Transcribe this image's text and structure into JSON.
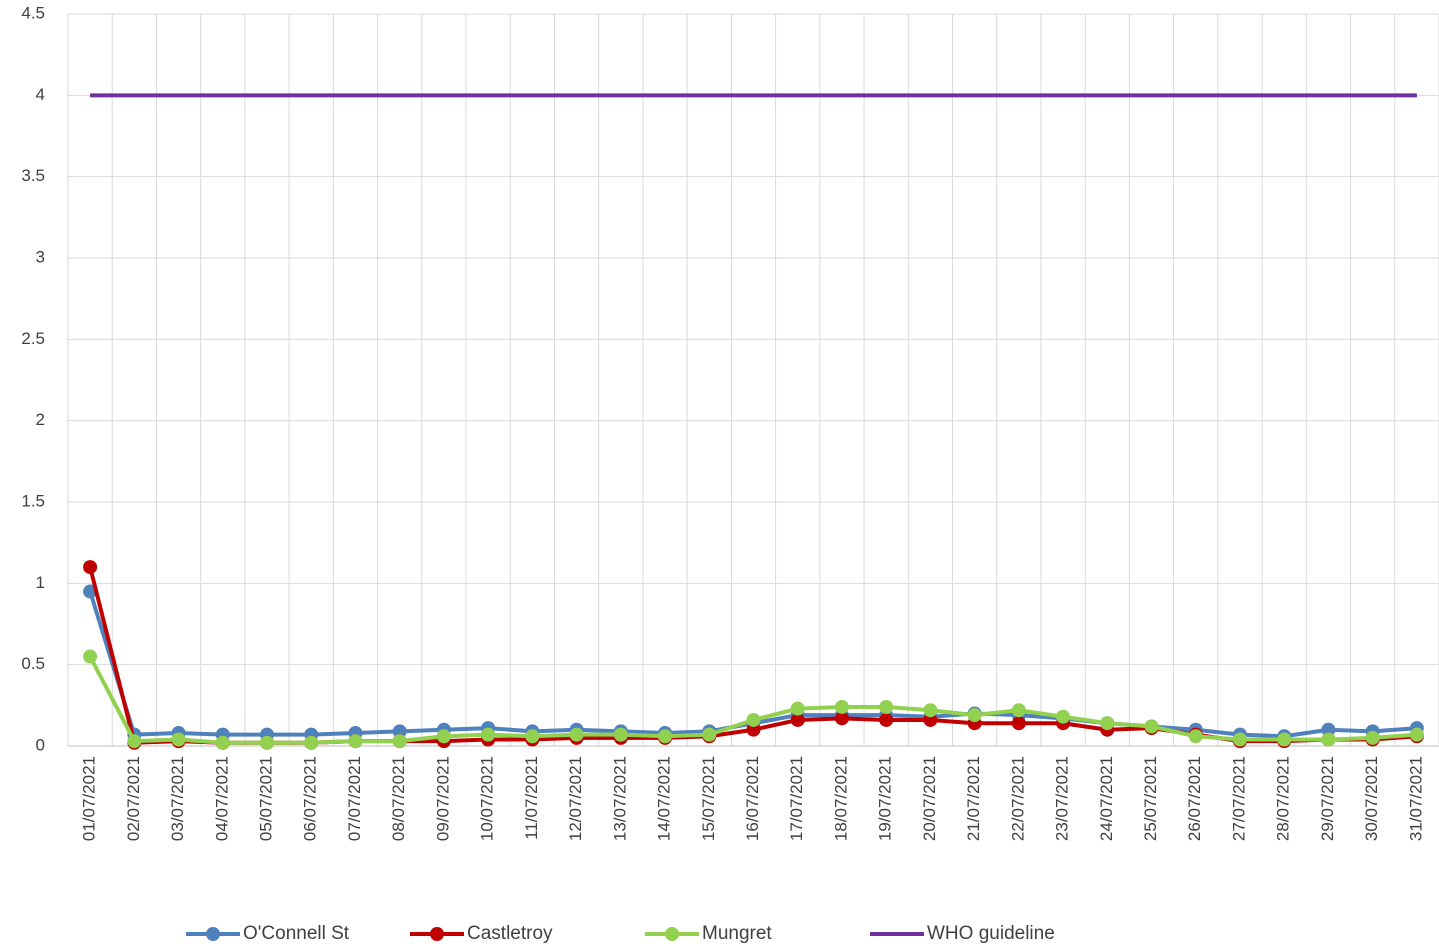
{
  "chart_data": {
    "type": "line",
    "x": [
      "01/07/2021",
      "02/07/2021",
      "03/07/2021",
      "04/07/2021",
      "05/07/2021",
      "06/07/2021",
      "07/07/2021",
      "08/07/2021",
      "09/07/2021",
      "10/07/2021",
      "11/07/2021",
      "12/07/2021",
      "13/07/2021",
      "14/07/2021",
      "15/07/2021",
      "16/07/2021",
      "17/07/2021",
      "18/07/2021",
      "19/07/2021",
      "20/07/2021",
      "21/07/2021",
      "22/07/2021",
      "23/07/2021",
      "24/07/2021",
      "25/07/2021",
      "26/07/2021",
      "27/07/2021",
      "28/07/2021",
      "29/07/2021",
      "30/07/2021",
      "31/07/2021"
    ],
    "series": [
      {
        "name": "O'Connell St",
        "color": "#4f81bd",
        "marker": true,
        "values": [
          0.95,
          0.07,
          0.08,
          0.07,
          0.07,
          0.07,
          0.08,
          0.09,
          0.1,
          0.11,
          0.09,
          0.1,
          0.09,
          0.08,
          0.09,
          0.14,
          0.19,
          0.19,
          0.19,
          0.18,
          0.2,
          0.19,
          0.17,
          0.14,
          0.12,
          0.1,
          0.07,
          0.06,
          0.1,
          0.09,
          0.11
        ]
      },
      {
        "name": "Castletroy",
        "color": "#c00000",
        "marker": true,
        "values": [
          1.1,
          0.02,
          0.03,
          0.02,
          0.02,
          0.02,
          0.03,
          0.03,
          0.03,
          0.04,
          0.04,
          0.05,
          0.05,
          0.05,
          0.06,
          0.1,
          0.16,
          0.17,
          0.16,
          0.16,
          0.14,
          0.14,
          0.14,
          0.1,
          0.11,
          0.07,
          0.03,
          0.03,
          0.04,
          0.04,
          0.06
        ]
      },
      {
        "name": "Mungret",
        "color": "#92d050",
        "marker": true,
        "values": [
          0.55,
          0.03,
          0.04,
          0.02,
          0.02,
          0.02,
          0.03,
          0.03,
          0.06,
          0.07,
          0.06,
          0.07,
          0.07,
          0.06,
          0.07,
          0.16,
          0.23,
          0.24,
          0.24,
          0.22,
          0.19,
          0.22,
          0.18,
          0.14,
          0.12,
          0.06,
          0.04,
          0.04,
          0.04,
          0.05,
          0.07
        ]
      },
      {
        "name": "WHO guideline",
        "color": "#7030a0",
        "marker": false,
        "values": [
          4,
          4,
          4,
          4,
          4,
          4,
          4,
          4,
          4,
          4,
          4,
          4,
          4,
          4,
          4,
          4,
          4,
          4,
          4,
          4,
          4,
          4,
          4,
          4,
          4,
          4,
          4,
          4,
          4,
          4,
          4
        ]
      }
    ],
    "ylim": [
      0,
      4.5
    ],
    "yticks": [
      0,
      0.5,
      1,
      1.5,
      2,
      2.5,
      3,
      3.5,
      4,
      4.5
    ],
    "grid": true,
    "legend": "bottom"
  }
}
